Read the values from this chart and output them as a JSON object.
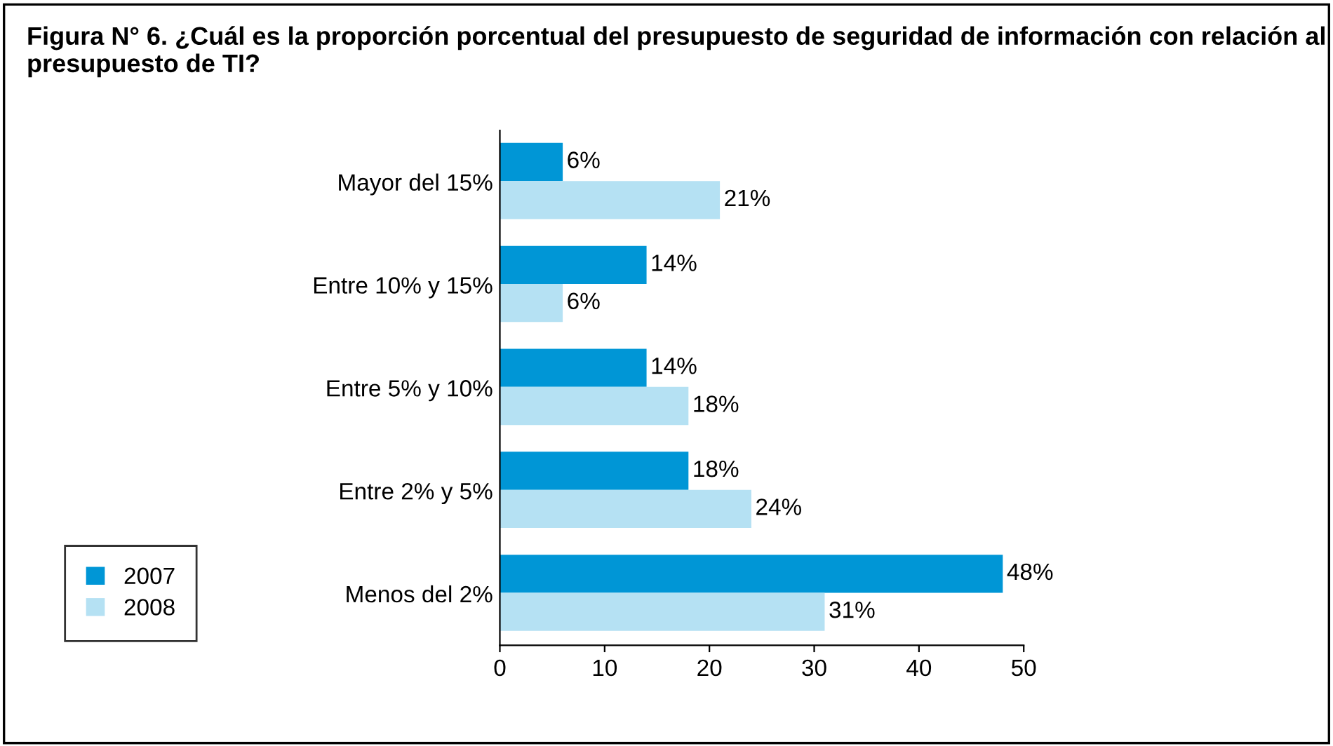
{
  "chart_data": {
    "type": "bar",
    "orientation": "horizontal",
    "title": "Figura N° 6. ¿Cuál es la proporción porcentual del presupuesto de seguridad de información con relación al presupuesto de TI?",
    "categories": [
      "Mayor del 15%",
      "Entre 10% y 15%",
      "Entre 5% y 10%",
      "Entre 2% y 5%",
      "Menos del 2%"
    ],
    "series": [
      {
        "name": "2007",
        "color": "#0096d6",
        "values": [
          6,
          14,
          14,
          18,
          48
        ],
        "value_labels": [
          "6%",
          "14%",
          "14%",
          "18%",
          "48%"
        ]
      },
      {
        "name": "2008",
        "color": "#b5e1f3",
        "values": [
          21,
          6,
          18,
          24,
          31
        ],
        "value_labels": [
          "21%",
          "6%",
          "18%",
          "24%",
          "31%"
        ]
      }
    ],
    "xlim": [
      0,
      50
    ],
    "xticks": [
      0,
      10,
      20,
      30,
      40,
      50
    ],
    "grid": false,
    "legend": "bottom left"
  }
}
